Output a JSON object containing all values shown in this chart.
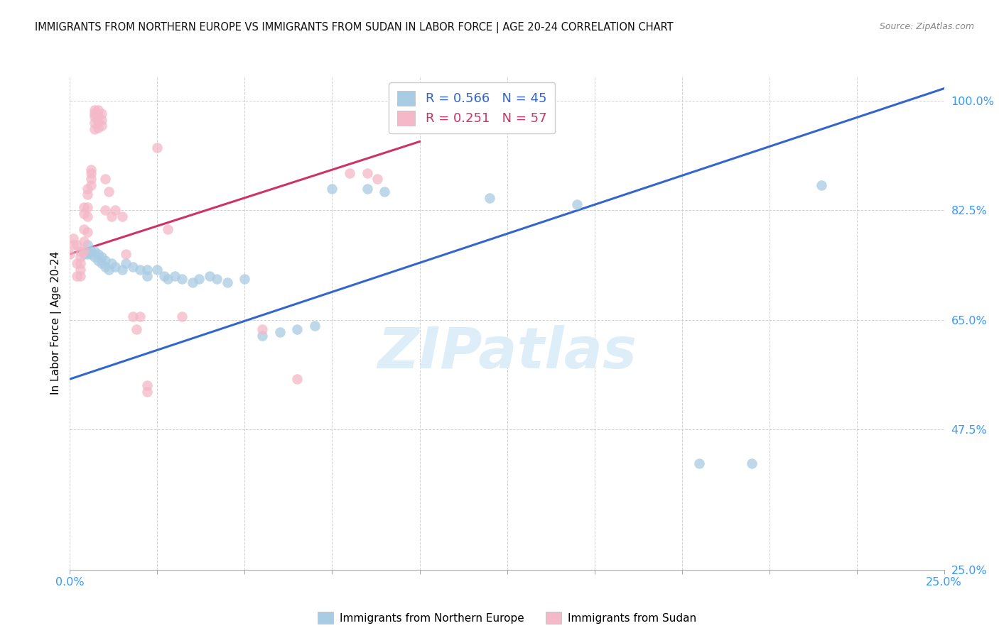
{
  "title": "IMMIGRANTS FROM NORTHERN EUROPE VS IMMIGRANTS FROM SUDAN IN LABOR FORCE | AGE 20-24 CORRELATION CHART",
  "source": "Source: ZipAtlas.com",
  "ylabel": "In Labor Force | Age 20-24",
  "xmin": 0.0,
  "xmax": 0.25,
  "ymin": 0.25,
  "ymax": 1.04,
  "legend_label_blue": "Immigrants from Northern Europe",
  "legend_label_pink": "Immigrants from Sudan",
  "R_blue": "0.566",
  "N_blue": "45",
  "R_pink": "0.251",
  "N_pink": "57",
  "blue_marker_color": "#a8cce4",
  "pink_marker_color": "#f4b8c8",
  "trendline_blue": "#3366cc",
  "trendline_pink": "#cc3366",
  "watermark_text": "ZIPatlas",
  "watermark_color": "#ddeef8",
  "title_color": "#111111",
  "source_color": "#888888",
  "axis_label_color": "#3399ff",
  "ytick_labels": [
    "100.0%",
    "82.5%",
    "65.0%",
    "47.5%",
    "25.0%"
  ],
  "ytick_values": [
    1.0,
    0.825,
    0.65,
    0.475,
    0.25
  ],
  "xtick_values": [
    0.0,
    0.025,
    0.05,
    0.075,
    0.1,
    0.125,
    0.15,
    0.175,
    0.2,
    0.225,
    0.25
  ],
  "blue_dots": [
    [
      0.004,
      0.755
    ],
    [
      0.005,
      0.755
    ],
    [
      0.005,
      0.77
    ],
    [
      0.006,
      0.76
    ],
    [
      0.006,
      0.755
    ],
    [
      0.007,
      0.76
    ],
    [
      0.007,
      0.75
    ],
    [
      0.008,
      0.755
    ],
    [
      0.008,
      0.745
    ],
    [
      0.009,
      0.74
    ],
    [
      0.009,
      0.75
    ],
    [
      0.01,
      0.735
    ],
    [
      0.01,
      0.745
    ],
    [
      0.011,
      0.73
    ],
    [
      0.012,
      0.74
    ],
    [
      0.013,
      0.735
    ],
    [
      0.015,
      0.73
    ],
    [
      0.016,
      0.74
    ],
    [
      0.018,
      0.735
    ],
    [
      0.02,
      0.73
    ],
    [
      0.022,
      0.73
    ],
    [
      0.022,
      0.72
    ],
    [
      0.025,
      0.73
    ],
    [
      0.027,
      0.72
    ],
    [
      0.028,
      0.715
    ],
    [
      0.03,
      0.72
    ],
    [
      0.032,
      0.715
    ],
    [
      0.035,
      0.71
    ],
    [
      0.037,
      0.715
    ],
    [
      0.04,
      0.72
    ],
    [
      0.042,
      0.715
    ],
    [
      0.045,
      0.71
    ],
    [
      0.05,
      0.715
    ],
    [
      0.055,
      0.625
    ],
    [
      0.06,
      0.63
    ],
    [
      0.065,
      0.635
    ],
    [
      0.07,
      0.64
    ],
    [
      0.075,
      0.86
    ],
    [
      0.085,
      0.86
    ],
    [
      0.09,
      0.855
    ],
    [
      0.12,
      0.845
    ],
    [
      0.145,
      0.835
    ],
    [
      0.18,
      0.42
    ],
    [
      0.195,
      0.42
    ],
    [
      0.215,
      0.865
    ]
  ],
  "pink_dots": [
    [
      0.0,
      0.755
    ],
    [
      0.001,
      0.78
    ],
    [
      0.001,
      0.77
    ],
    [
      0.002,
      0.77
    ],
    [
      0.002,
      0.74
    ],
    [
      0.002,
      0.72
    ],
    [
      0.003,
      0.76
    ],
    [
      0.003,
      0.75
    ],
    [
      0.003,
      0.74
    ],
    [
      0.003,
      0.73
    ],
    [
      0.003,
      0.72
    ],
    [
      0.004,
      0.83
    ],
    [
      0.004,
      0.82
    ],
    [
      0.004,
      0.795
    ],
    [
      0.004,
      0.775
    ],
    [
      0.004,
      0.76
    ],
    [
      0.005,
      0.86
    ],
    [
      0.005,
      0.85
    ],
    [
      0.005,
      0.83
    ],
    [
      0.005,
      0.815
    ],
    [
      0.005,
      0.79
    ],
    [
      0.006,
      0.89
    ],
    [
      0.006,
      0.885
    ],
    [
      0.006,
      0.875
    ],
    [
      0.006,
      0.865
    ],
    [
      0.007,
      0.985
    ],
    [
      0.007,
      0.98
    ],
    [
      0.007,
      0.975
    ],
    [
      0.007,
      0.965
    ],
    [
      0.007,
      0.955
    ],
    [
      0.008,
      0.985
    ],
    [
      0.008,
      0.977
    ],
    [
      0.008,
      0.967
    ],
    [
      0.008,
      0.957
    ],
    [
      0.009,
      0.98
    ],
    [
      0.009,
      0.97
    ],
    [
      0.009,
      0.96
    ],
    [
      0.01,
      0.875
    ],
    [
      0.01,
      0.825
    ],
    [
      0.011,
      0.855
    ],
    [
      0.012,
      0.815
    ],
    [
      0.013,
      0.825
    ],
    [
      0.015,
      0.815
    ],
    [
      0.016,
      0.755
    ],
    [
      0.018,
      0.655
    ],
    [
      0.019,
      0.635
    ],
    [
      0.02,
      0.655
    ],
    [
      0.022,
      0.545
    ],
    [
      0.022,
      0.535
    ],
    [
      0.025,
      0.925
    ],
    [
      0.028,
      0.795
    ],
    [
      0.032,
      0.655
    ],
    [
      0.055,
      0.635
    ],
    [
      0.065,
      0.555
    ],
    [
      0.08,
      0.885
    ],
    [
      0.085,
      0.885
    ],
    [
      0.088,
      0.875
    ]
  ],
  "blue_trend_x": [
    0.0,
    0.25
  ],
  "blue_trend_y": [
    0.555,
    1.02
  ],
  "pink_trend_x": [
    0.0,
    0.1
  ],
  "pink_trend_y": [
    0.755,
    0.935
  ]
}
